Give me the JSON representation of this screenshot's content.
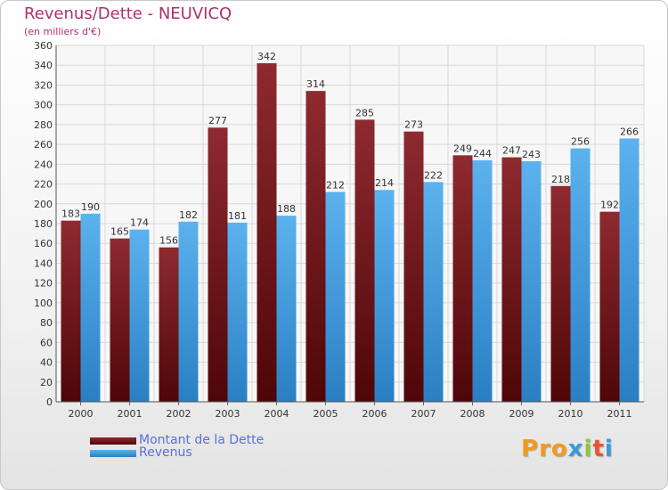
{
  "header": {
    "title": "Revenus/Dette - NEUVICQ",
    "subtitle": "(en milliers d'€)"
  },
  "brand": {
    "logo_text": "Proxiti"
  },
  "colors": {
    "dette": "#7a1a1e",
    "revenus": "#4aa3e3",
    "title": "#b0306a",
    "legend_text": "#5b6fd8"
  },
  "chart_data": {
    "type": "bar",
    "title": "Revenus/Dette - NEUVICQ",
    "subtitle": "(en milliers d'€)",
    "categories": [
      "2000",
      "2001",
      "2002",
      "2003",
      "2004",
      "2005",
      "2006",
      "2007",
      "2008",
      "2009",
      "2010",
      "2011"
    ],
    "series": [
      {
        "name": "Montant de la Dette",
        "values": [
          183,
          165,
          156,
          277,
          342,
          314,
          285,
          273,
          249,
          247,
          218,
          192
        ],
        "color": "#7a1a1e"
      },
      {
        "name": "Revenus",
        "values": [
          190,
          174,
          182,
          181,
          188,
          212,
          214,
          222,
          244,
          243,
          256,
          266
        ],
        "color": "#4aa3e3"
      }
    ],
    "ylim": [
      0,
      360
    ],
    "yticks": [
      0,
      20,
      40,
      60,
      80,
      100,
      120,
      140,
      160,
      180,
      200,
      220,
      240,
      260,
      280,
      300,
      320,
      340,
      360
    ],
    "grid": true,
    "legend_position": "bottom-left",
    "data_labels": true
  }
}
